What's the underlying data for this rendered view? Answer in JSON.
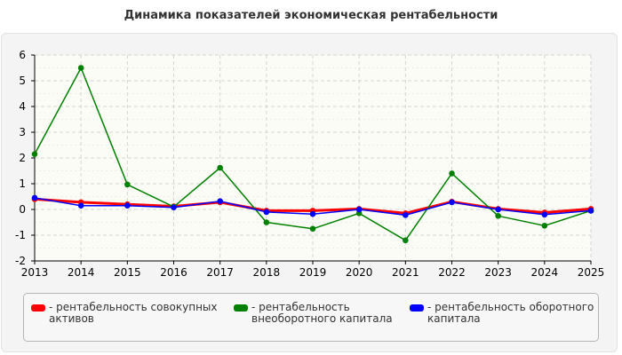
{
  "chart_data": {
    "type": "line",
    "title": "Динамика показателей экономическая рентабельности",
    "x": [
      "2013",
      "2014",
      "2015",
      "2016",
      "2017",
      "2018",
      "2019",
      "2020",
      "2021",
      "2022",
      "2023",
      "2024",
      "2025"
    ],
    "y_ticks": [
      "-2",
      "-1",
      "0",
      "1",
      "2",
      "3",
      "4",
      "5",
      "6"
    ],
    "ylim": [
      -2,
      6
    ],
    "grid": true,
    "legend_position": "bottom",
    "series": [
      {
        "name": "рентабельность совокупных активов",
        "color": "#ff0000",
        "values": [
          0.4,
          0.28,
          0.2,
          0.12,
          0.28,
          -0.05,
          -0.05,
          0.02,
          -0.15,
          0.3,
          0.02,
          -0.12,
          0.02
        ]
      },
      {
        "name": "рентабельность внеоборотного капитала",
        "color": "#008000",
        "values": [
          2.15,
          5.5,
          0.97,
          0.1,
          1.62,
          -0.5,
          -0.75,
          -0.15,
          -1.2,
          1.4,
          -0.25,
          -0.63,
          -0.05
        ]
      },
      {
        "name": "рентабельность оборотного капитала",
        "color": "#0000ff",
        "values": [
          0.45,
          0.15,
          0.15,
          0.08,
          0.32,
          -0.1,
          -0.18,
          0.0,
          -0.22,
          0.28,
          0.0,
          -0.2,
          -0.05
        ]
      }
    ]
  },
  "legend": {
    "items": [
      {
        "line1": "- рентабельность совокупных",
        "line2": "активов"
      },
      {
        "line1": "- рентабельность",
        "line2": "внеоборотного капитала"
      },
      {
        "line1": "- рентабельность оборотного",
        "line2": "капитала"
      }
    ]
  }
}
